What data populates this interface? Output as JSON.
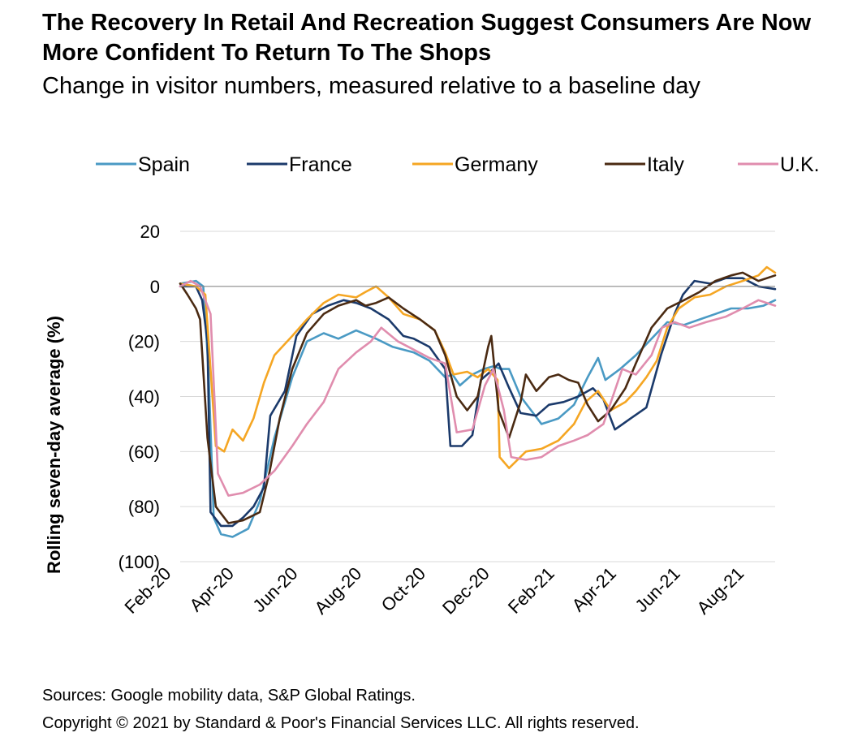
{
  "chart_data": {
    "type": "line",
    "title": "The Recovery In Retail And Recreation Suggest Consumers Are Now More Confident To Return To The Shops",
    "subtitle": "Change in visitor numbers, measured relative to a baseline day",
    "ylabel": "Rolling seven-day average (%)",
    "xlabel": "",
    "ylim": [
      -100,
      20
    ],
    "xlim": [
      "2020-02-15",
      "2021-09-05"
    ],
    "y_ticks": [
      20,
      0,
      -20,
      -40,
      -60,
      -80,
      -100
    ],
    "y_tick_labels": [
      "20",
      "0",
      "(20)",
      "(40)",
      "(60)",
      "(80)",
      "(100)"
    ],
    "x_ticks": [
      "2020-02-01",
      "2020-04-01",
      "2020-06-01",
      "2020-08-01",
      "2020-10-01",
      "2020-12-01",
      "2021-02-01",
      "2021-04-01",
      "2021-06-01",
      "2021-08-01"
    ],
    "x_tick_labels": [
      "Feb-20",
      "Apr-20",
      "Jun-20",
      "Aug-20",
      "Oct-20",
      "Dec-20",
      "Feb-21",
      "Apr-21",
      "Jun-21",
      "Aug-21"
    ],
    "grid": "horizontal",
    "legend_position": "top",
    "series": [
      {
        "name": "Spain",
        "color": "#4A9AC4",
        "points": [
          [
            "2020-02-15",
            1
          ],
          [
            "2020-03-01",
            2
          ],
          [
            "2020-03-08",
            0
          ],
          [
            "2020-03-13",
            -30
          ],
          [
            "2020-03-18",
            -84
          ],
          [
            "2020-03-25",
            -90
          ],
          [
            "2020-04-05",
            -91
          ],
          [
            "2020-04-20",
            -88
          ],
          [
            "2020-05-01",
            -78
          ],
          [
            "2020-05-15",
            -55
          ],
          [
            "2020-06-01",
            -33
          ],
          [
            "2020-06-15",
            -20
          ],
          [
            "2020-07-01",
            -17
          ],
          [
            "2020-07-15",
            -19
          ],
          [
            "2020-08-01",
            -16
          ],
          [
            "2020-08-20",
            -19
          ],
          [
            "2020-09-05",
            -22
          ],
          [
            "2020-09-25",
            -24
          ],
          [
            "2020-10-10",
            -27
          ],
          [
            "2020-10-25",
            -33
          ],
          [
            "2020-11-01",
            -32
          ],
          [
            "2020-11-08",
            -36
          ],
          [
            "2020-11-20",
            -32
          ],
          [
            "2020-12-01",
            -30
          ],
          [
            "2020-12-10",
            -29
          ],
          [
            "2020-12-17",
            -30
          ],
          [
            "2020-12-25",
            -30
          ],
          [
            "2021-01-05",
            -40
          ],
          [
            "2021-01-15",
            -45
          ],
          [
            "2021-01-25",
            -50
          ],
          [
            "2021-02-10",
            -48
          ],
          [
            "2021-02-25",
            -43
          ],
          [
            "2021-03-10",
            -33
          ],
          [
            "2021-03-20",
            -26
          ],
          [
            "2021-03-27",
            -34
          ],
          [
            "2021-04-10",
            -30
          ],
          [
            "2021-04-25",
            -25
          ],
          [
            "2021-05-10",
            -19
          ],
          [
            "2021-05-25",
            -13
          ],
          [
            "2021-06-10",
            -14
          ],
          [
            "2021-06-25",
            -12
          ],
          [
            "2021-07-10",
            -10
          ],
          [
            "2021-07-25",
            -8
          ],
          [
            "2021-08-10",
            -8
          ],
          [
            "2021-08-25",
            -7
          ],
          [
            "2021-09-05",
            -5
          ]
        ]
      },
      {
        "name": "France",
        "color": "#1B3A6B",
        "points": [
          [
            "2020-02-15",
            0
          ],
          [
            "2020-03-01",
            0
          ],
          [
            "2020-03-07",
            -5
          ],
          [
            "2020-03-12",
            -20
          ],
          [
            "2020-03-15",
            -82
          ],
          [
            "2020-03-25",
            -87
          ],
          [
            "2020-04-05",
            -87
          ],
          [
            "2020-04-15",
            -84
          ],
          [
            "2020-04-25",
            -80
          ],
          [
            "2020-05-05",
            -73
          ],
          [
            "2020-05-11",
            -47
          ],
          [
            "2020-05-25",
            -38
          ],
          [
            "2020-06-05",
            -18
          ],
          [
            "2020-06-20",
            -10
          ],
          [
            "2020-07-05",
            -7
          ],
          [
            "2020-07-20",
            -5
          ],
          [
            "2020-08-01",
            -6
          ],
          [
            "2020-08-15",
            -8
          ],
          [
            "2020-09-01",
            -12
          ],
          [
            "2020-09-15",
            -18
          ],
          [
            "2020-09-25",
            -19
          ],
          [
            "2020-10-10",
            -22
          ],
          [
            "2020-10-25",
            -30
          ],
          [
            "2020-10-30",
            -58
          ],
          [
            "2020-11-10",
            -58
          ],
          [
            "2020-11-20",
            -54
          ],
          [
            "2020-11-28",
            -34
          ],
          [
            "2020-12-10",
            -30
          ],
          [
            "2020-12-15",
            -28
          ],
          [
            "2020-12-24",
            -36
          ],
          [
            "2021-01-05",
            -46
          ],
          [
            "2021-01-20",
            -47
          ],
          [
            "2021-02-01",
            -43
          ],
          [
            "2021-02-15",
            -42
          ],
          [
            "2021-03-01",
            -40
          ],
          [
            "2021-03-15",
            -37
          ],
          [
            "2021-03-25",
            -41
          ],
          [
            "2021-04-05",
            -52
          ],
          [
            "2021-04-20",
            -48
          ],
          [
            "2021-05-05",
            -44
          ],
          [
            "2021-05-19",
            -25
          ],
          [
            "2021-06-01",
            -10
          ],
          [
            "2021-06-09",
            -3
          ],
          [
            "2021-06-20",
            2
          ],
          [
            "2021-07-05",
            1
          ],
          [
            "2021-07-20",
            3
          ],
          [
            "2021-08-05",
            3
          ],
          [
            "2021-08-20",
            0
          ],
          [
            "2021-09-05",
            -1
          ]
        ]
      },
      {
        "name": "Germany",
        "color": "#F5A623",
        "points": [
          [
            "2020-02-15",
            1
          ],
          [
            "2020-03-01",
            0
          ],
          [
            "2020-03-10",
            -3
          ],
          [
            "2020-03-15",
            -30
          ],
          [
            "2020-03-20",
            -58
          ],
          [
            "2020-03-28",
            -60
          ],
          [
            "2020-04-05",
            -52
          ],
          [
            "2020-04-15",
            -56
          ],
          [
            "2020-04-25",
            -48
          ],
          [
            "2020-05-05",
            -35
          ],
          [
            "2020-05-15",
            -25
          ],
          [
            "2020-06-01",
            -18
          ],
          [
            "2020-06-15",
            -12
          ],
          [
            "2020-07-01",
            -6
          ],
          [
            "2020-07-15",
            -3
          ],
          [
            "2020-08-01",
            -4
          ],
          [
            "2020-08-10",
            -2
          ],
          [
            "2020-08-20",
            0
          ],
          [
            "2020-09-01",
            -4
          ],
          [
            "2020-09-15",
            -10
          ],
          [
            "2020-10-01",
            -12
          ],
          [
            "2020-10-15",
            -16
          ],
          [
            "2020-10-25",
            -24
          ],
          [
            "2020-11-02",
            -32
          ],
          [
            "2020-11-15",
            -31
          ],
          [
            "2020-11-25",
            -33
          ],
          [
            "2020-12-05",
            -30
          ],
          [
            "2020-12-14",
            -34
          ],
          [
            "2020-12-16",
            -62
          ],
          [
            "2020-12-25",
            -66
          ],
          [
            "2021-01-10",
            -60
          ],
          [
            "2021-01-25",
            -59
          ],
          [
            "2021-02-10",
            -56
          ],
          [
            "2021-02-25",
            -50
          ],
          [
            "2021-03-08",
            -42
          ],
          [
            "2021-03-20",
            -38
          ],
          [
            "2021-04-01",
            -45
          ],
          [
            "2021-04-15",
            -42
          ],
          [
            "2021-04-25",
            -38
          ],
          [
            "2021-05-05",
            -33
          ],
          [
            "2021-05-15",
            -27
          ],
          [
            "2021-05-25",
            -15
          ],
          [
            "2021-06-05",
            -8
          ],
          [
            "2021-06-20",
            -4
          ],
          [
            "2021-07-05",
            -3
          ],
          [
            "2021-07-20",
            0
          ],
          [
            "2021-08-05",
            2
          ],
          [
            "2021-08-20",
            4
          ],
          [
            "2021-08-28",
            7
          ],
          [
            "2021-09-05",
            5
          ]
        ]
      },
      {
        "name": "Italy",
        "color": "#4A2A12",
        "points": [
          [
            "2020-02-15",
            1
          ],
          [
            "2020-02-22",
            -3
          ],
          [
            "2020-03-01",
            -8
          ],
          [
            "2020-03-05",
            -12
          ],
          [
            "2020-03-12",
            -55
          ],
          [
            "2020-03-20",
            -80
          ],
          [
            "2020-04-01",
            -86
          ],
          [
            "2020-04-15",
            -85
          ],
          [
            "2020-05-01",
            -82
          ],
          [
            "2020-05-10",
            -68
          ],
          [
            "2020-05-20",
            -48
          ],
          [
            "2020-06-01",
            -30
          ],
          [
            "2020-06-15",
            -17
          ],
          [
            "2020-07-01",
            -10
          ],
          [
            "2020-07-15",
            -7
          ],
          [
            "2020-08-01",
            -5
          ],
          [
            "2020-08-10",
            -7
          ],
          [
            "2020-08-20",
            -6
          ],
          [
            "2020-09-01",
            -4
          ],
          [
            "2020-09-15",
            -8
          ],
          [
            "2020-10-01",
            -12
          ],
          [
            "2020-10-15",
            -16
          ],
          [
            "2020-10-25",
            -25
          ],
          [
            "2020-11-05",
            -40
          ],
          [
            "2020-11-15",
            -45
          ],
          [
            "2020-11-25",
            -40
          ],
          [
            "2020-12-05",
            -22
          ],
          [
            "2020-12-08",
            -18
          ],
          [
            "2020-12-15",
            -45
          ],
          [
            "2020-12-25",
            -55
          ],
          [
            "2021-01-05",
            -42
          ],
          [
            "2021-01-10",
            -32
          ],
          [
            "2021-01-20",
            -38
          ],
          [
            "2021-02-01",
            -33
          ],
          [
            "2021-02-10",
            -32
          ],
          [
            "2021-02-20",
            -34
          ],
          [
            "2021-03-01",
            -35
          ],
          [
            "2021-03-10",
            -43
          ],
          [
            "2021-03-20",
            -49
          ],
          [
            "2021-04-01",
            -45
          ],
          [
            "2021-04-15",
            -37
          ],
          [
            "2021-04-25",
            -28
          ],
          [
            "2021-05-10",
            -15
          ],
          [
            "2021-05-25",
            -8
          ],
          [
            "2021-06-10",
            -5
          ],
          [
            "2021-06-25",
            -2
          ],
          [
            "2021-07-10",
            2
          ],
          [
            "2021-07-25",
            4
          ],
          [
            "2021-08-05",
            5
          ],
          [
            "2021-08-20",
            2
          ],
          [
            "2021-09-05",
            4
          ]
        ]
      },
      {
        "name": "U.K.",
        "color": "#E08DAE",
        "points": [
          [
            "2020-02-15",
            0
          ],
          [
            "2020-02-25",
            2
          ],
          [
            "2020-03-05",
            0
          ],
          [
            "2020-03-15",
            -10
          ],
          [
            "2020-03-22",
            -68
          ],
          [
            "2020-04-01",
            -76
          ],
          [
            "2020-04-15",
            -75
          ],
          [
            "2020-05-01",
            -72
          ],
          [
            "2020-05-15",
            -67
          ],
          [
            "2020-06-01",
            -58
          ],
          [
            "2020-06-15",
            -50
          ],
          [
            "2020-07-01",
            -42
          ],
          [
            "2020-07-15",
            -30
          ],
          [
            "2020-08-01",
            -24
          ],
          [
            "2020-08-15",
            -20
          ],
          [
            "2020-08-25",
            -15
          ],
          [
            "2020-09-10",
            -20
          ],
          [
            "2020-09-25",
            -23
          ],
          [
            "2020-10-10",
            -26
          ],
          [
            "2020-10-25",
            -28
          ],
          [
            "2020-11-05",
            -53
          ],
          [
            "2020-11-20",
            -52
          ],
          [
            "2020-12-02",
            -36
          ],
          [
            "2020-12-10",
            -30
          ],
          [
            "2020-12-20",
            -45
          ],
          [
            "2020-12-27",
            -62
          ],
          [
            "2021-01-10",
            -63
          ],
          [
            "2021-01-25",
            -62
          ],
          [
            "2021-02-10",
            -58
          ],
          [
            "2021-02-25",
            -56
          ],
          [
            "2021-03-10",
            -54
          ],
          [
            "2021-03-25",
            -50
          ],
          [
            "2021-04-12",
            -30
          ],
          [
            "2021-04-25",
            -32
          ],
          [
            "2021-05-10",
            -25
          ],
          [
            "2021-05-20",
            -15
          ],
          [
            "2021-06-01",
            -13
          ],
          [
            "2021-06-15",
            -15
          ],
          [
            "2021-07-01",
            -13
          ],
          [
            "2021-07-20",
            -11
          ],
          [
            "2021-08-05",
            -8
          ],
          [
            "2021-08-20",
            -5
          ],
          [
            "2021-09-05",
            -7
          ]
        ]
      }
    ]
  },
  "footer": {
    "sources": "Sources: Google mobility data, S&P Global Ratings.",
    "copyright": "Copyright © 2021 by Standard & Poor's Financial Services LLC. All rights reserved."
  }
}
